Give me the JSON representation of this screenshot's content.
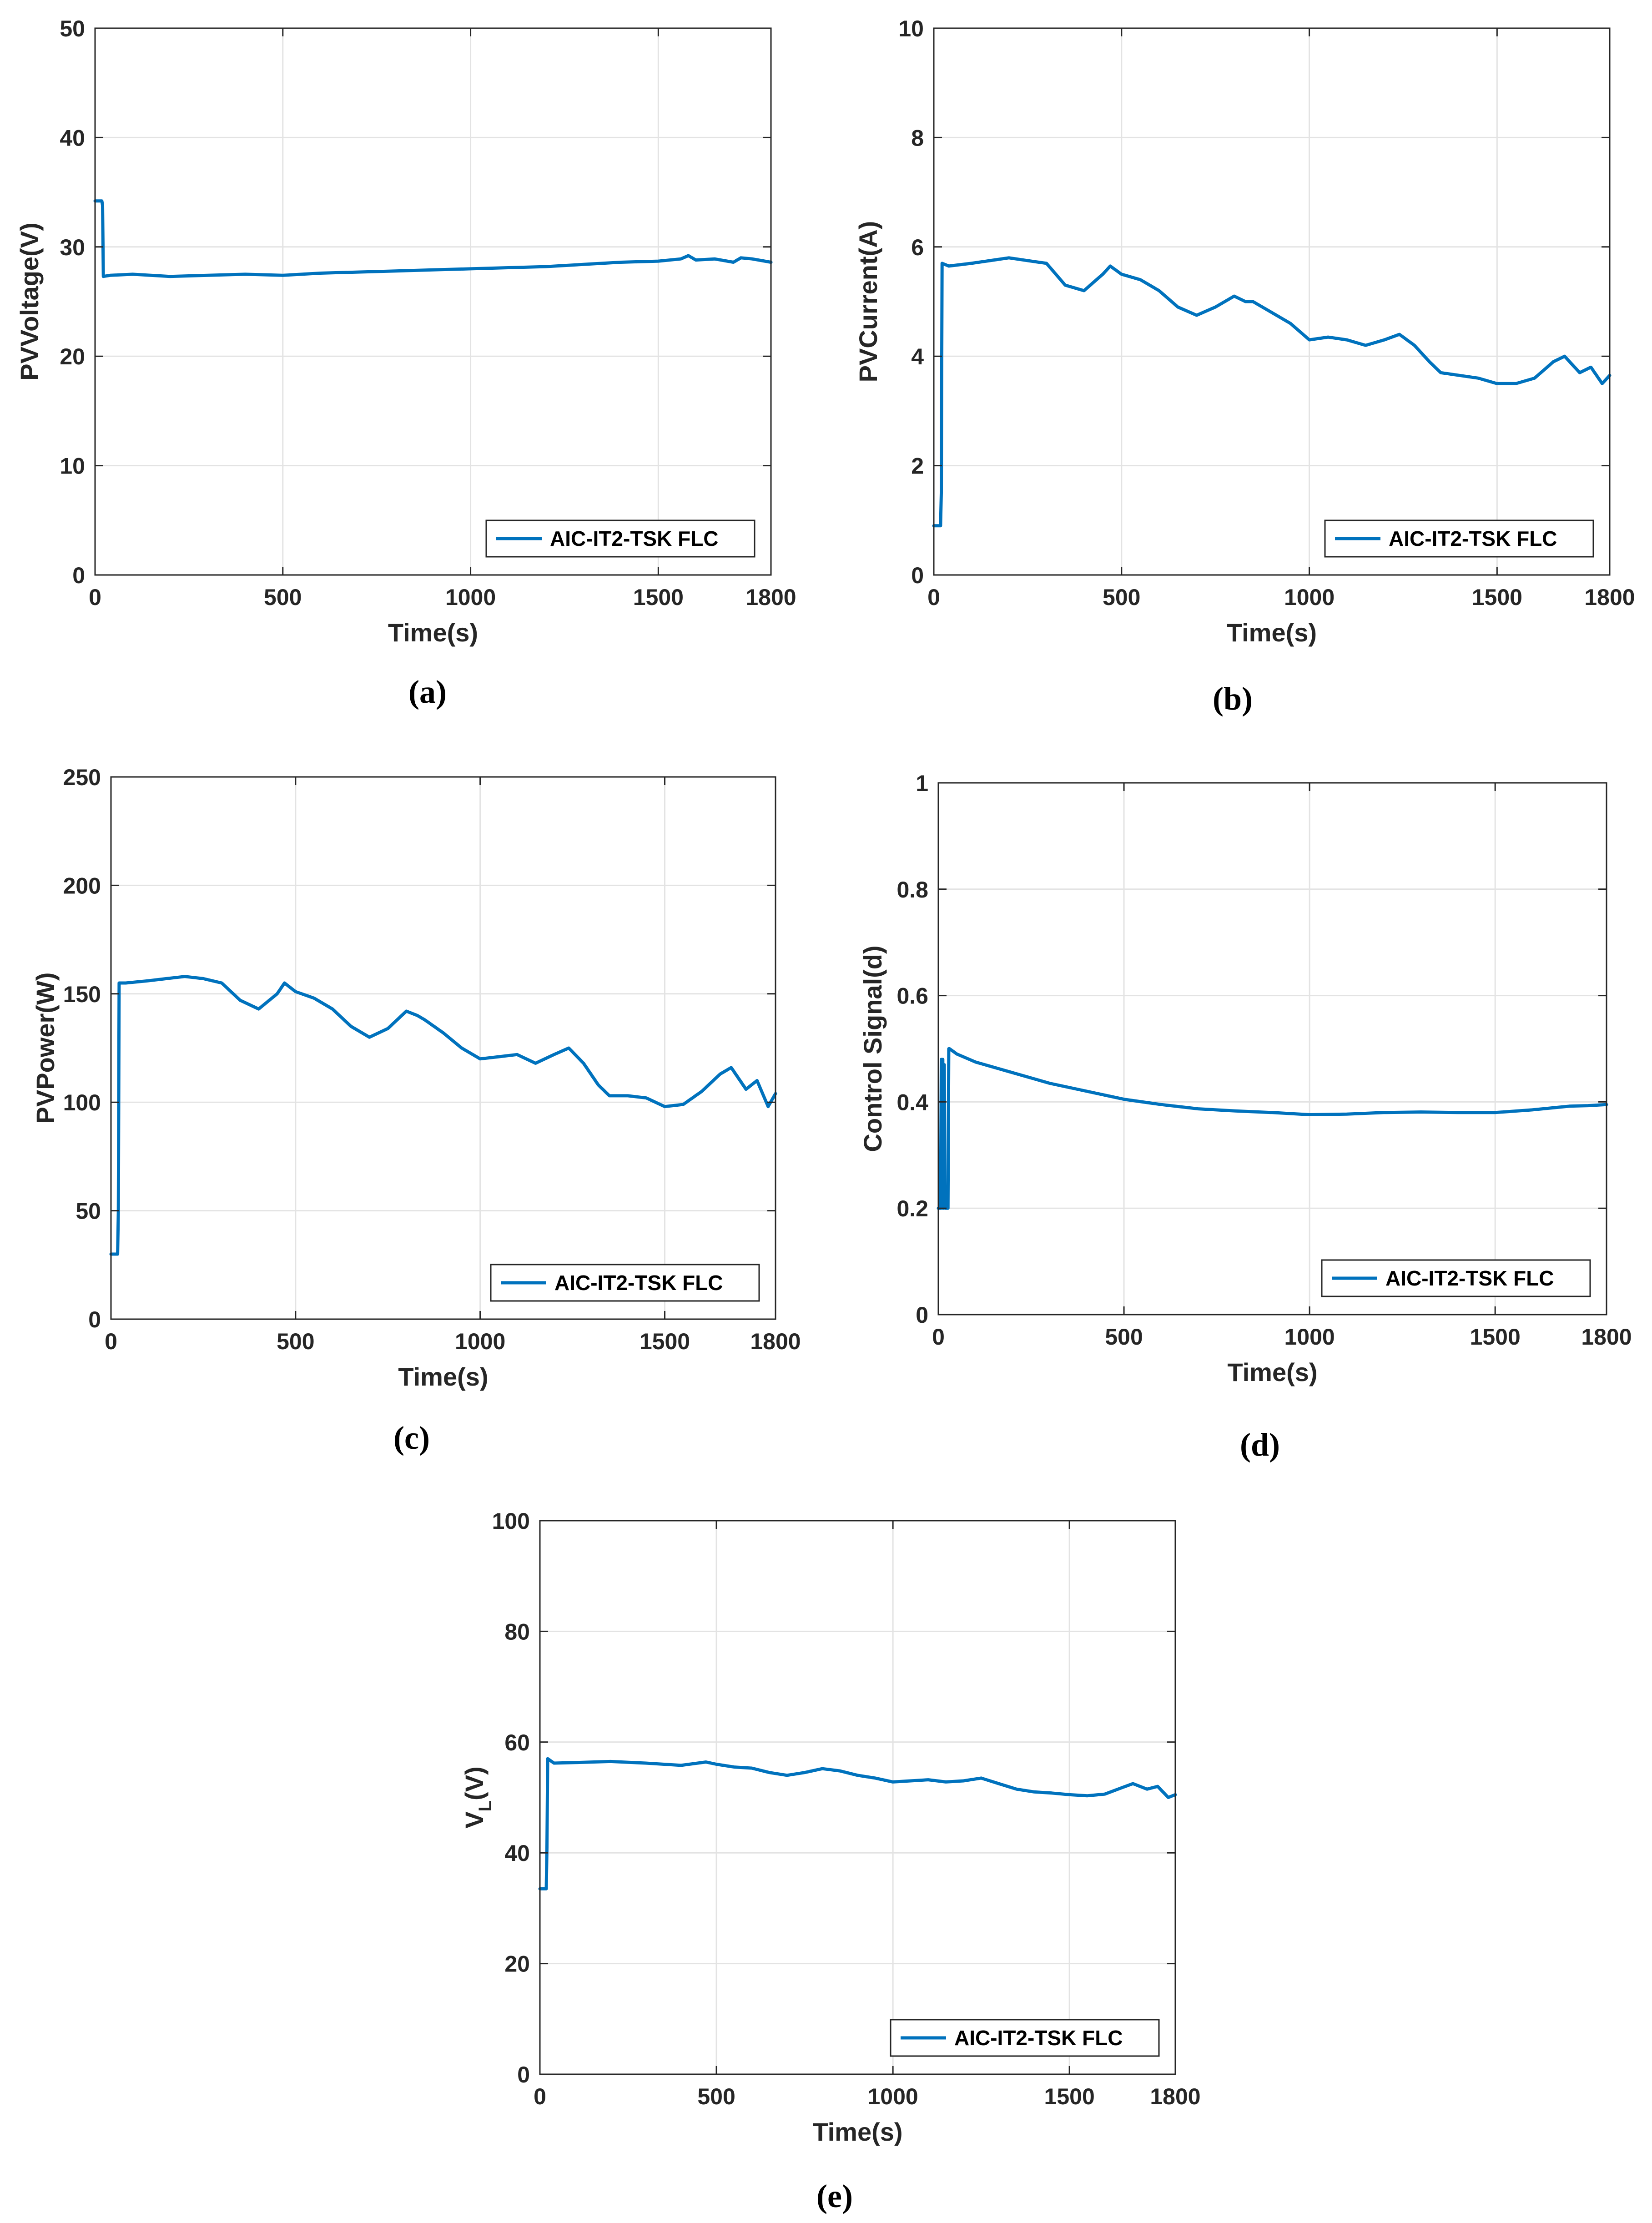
{
  "colors": {
    "series": "#0072BD",
    "axis": "#262626",
    "grid": "#e3e3e3"
  },
  "chart_data": [
    {
      "id": "a",
      "type": "line",
      "caption": "(a)",
      "xlabel": "Time(s)",
      "ylabel": "PVVoltage(V)",
      "xlim": [
        0,
        1800
      ],
      "ylim": [
        0,
        50
      ],
      "xticks": [
        0,
        500,
        1000,
        1500,
        1800
      ],
      "yticks": [
        0,
        10,
        20,
        30,
        40,
        50
      ],
      "grid": true,
      "legend": "AIC-IT2-TSK FLC",
      "legend_position": "bottom-right",
      "series": [
        {
          "name": "AIC-IT2-TSK FLC",
          "x": [
            0,
            18,
            20,
            22,
            40,
            100,
            200,
            300,
            400,
            500,
            600,
            700,
            800,
            900,
            1000,
            1100,
            1200,
            1300,
            1400,
            1500,
            1560,
            1580,
            1600,
            1650,
            1700,
            1720,
            1750,
            1800
          ],
          "y": [
            34.2,
            34.2,
            33.8,
            27.3,
            27.4,
            27.5,
            27.3,
            27.4,
            27.5,
            27.4,
            27.6,
            27.7,
            27.8,
            27.9,
            28.0,
            28.1,
            28.2,
            28.4,
            28.6,
            28.7,
            28.9,
            29.2,
            28.8,
            28.9,
            28.6,
            29.0,
            28.9,
            28.6
          ]
        }
      ]
    },
    {
      "id": "b",
      "type": "line",
      "caption": "(b)",
      "xlabel": "Time(s)",
      "ylabel": "PVCurrent(A)",
      "xlim": [
        0,
        1800
      ],
      "ylim": [
        0,
        10
      ],
      "xticks": [
        0,
        500,
        1000,
        1500,
        1800
      ],
      "yticks": [
        0,
        2,
        4,
        6,
        8,
        10
      ],
      "grid": true,
      "legend": "AIC-IT2-TSK FLC",
      "legend_position": "bottom-right",
      "series": [
        {
          "name": "AIC-IT2-TSK FLC",
          "x": [
            0,
            18,
            20,
            22,
            40,
            100,
            150,
            200,
            250,
            300,
            350,
            400,
            450,
            470,
            500,
            550,
            600,
            650,
            700,
            750,
            800,
            830,
            850,
            900,
            950,
            1000,
            1050,
            1100,
            1150,
            1200,
            1240,
            1280,
            1320,
            1350,
            1400,
            1450,
            1500,
            1550,
            1600,
            1650,
            1680,
            1720,
            1750,
            1780,
            1800
          ],
          "y": [
            0.9,
            0.9,
            1.5,
            5.7,
            5.65,
            5.7,
            5.75,
            5.8,
            5.75,
            5.7,
            5.3,
            5.2,
            5.5,
            5.65,
            5.5,
            5.4,
            5.2,
            4.9,
            4.75,
            4.9,
            5.1,
            5.0,
            5.0,
            4.8,
            4.6,
            4.3,
            4.35,
            4.3,
            4.2,
            4.3,
            4.4,
            4.2,
            3.9,
            3.7,
            3.65,
            3.6,
            3.5,
            3.5,
            3.6,
            3.9,
            4.0,
            3.7,
            3.8,
            3.5,
            3.65
          ]
        }
      ]
    },
    {
      "id": "c",
      "type": "line",
      "caption": "(c)",
      "xlabel": "Time(s)",
      "ylabel": "PVPower(W)",
      "xlim": [
        0,
        1800
      ],
      "ylim": [
        0,
        250
      ],
      "xticks": [
        0,
        500,
        1000,
        1500,
        1800
      ],
      "yticks": [
        0,
        50,
        100,
        150,
        200,
        250
      ],
      "grid": true,
      "legend": "AIC-IT2-TSK FLC",
      "legend_position": "bottom-right",
      "series": [
        {
          "name": "AIC-IT2-TSK FLC",
          "x": [
            0,
            18,
            20,
            22,
            40,
            100,
            150,
            200,
            250,
            300,
            350,
            400,
            450,
            470,
            500,
            550,
            600,
            650,
            700,
            750,
            800,
            830,
            850,
            900,
            950,
            1000,
            1050,
            1100,
            1150,
            1200,
            1240,
            1280,
            1320,
            1350,
            1400,
            1450,
            1500,
            1550,
            1600,
            1650,
            1680,
            1720,
            1750,
            1780,
            1800
          ],
          "y": [
            30,
            30,
            50,
            155,
            155,
            156,
            157,
            158,
            157,
            155,
            147,
            143,
            150,
            155,
            151,
            148,
            143,
            135,
            130,
            134,
            142,
            140,
            138,
            132,
            125,
            120,
            121,
            122,
            118,
            122,
            125,
            118,
            108,
            103,
            103,
            102,
            98,
            99,
            105,
            113,
            116,
            106,
            110,
            98,
            104
          ]
        }
      ]
    },
    {
      "id": "d",
      "type": "line",
      "caption": "(d)",
      "xlabel": "Time(s)",
      "ylabel": "Control Signal(d)",
      "xlim": [
        0,
        1800
      ],
      "ylim": [
        0,
        1
      ],
      "xticks": [
        0,
        500,
        1000,
        1500,
        1800
      ],
      "yticks": [
        0,
        0.2,
        0.4,
        0.6,
        0.8,
        1
      ],
      "grid": true,
      "legend": "AIC-IT2-TSK FLC",
      "legend_position": "bottom-right",
      "series": [
        {
          "name": "AIC-IT2-TSK FLC",
          "x": [
            0,
            6,
            8,
            10,
            12,
            14,
            16,
            18,
            20,
            22,
            24,
            26,
            28,
            30,
            50,
            100,
            200,
            300,
            400,
            500,
            600,
            700,
            800,
            900,
            1000,
            1100,
            1200,
            1300,
            1400,
            1500,
            1600,
            1700,
            1750,
            1800
          ],
          "y": [
            0.2,
            0.2,
            0.48,
            0.2,
            0.48,
            0.2,
            0.47,
            0.2,
            0.2,
            0.2,
            0.2,
            0.2,
            0.5,
            0.5,
            0.49,
            0.475,
            0.455,
            0.435,
            0.42,
            0.405,
            0.395,
            0.387,
            0.383,
            0.38,
            0.376,
            0.377,
            0.38,
            0.381,
            0.38,
            0.38,
            0.385,
            0.392,
            0.393,
            0.395
          ]
        }
      ]
    },
    {
      "id": "e",
      "type": "line",
      "caption": "(e)",
      "xlabel": "Time(s)",
      "ylabel": "V_L(V)",
      "ylabel_main": "V",
      "ylabel_sub": "L",
      "ylabel_tail": "(V)",
      "xlim": [
        0,
        1800
      ],
      "ylim": [
        0,
        100
      ],
      "xticks": [
        0,
        500,
        1000,
        1500,
        1800
      ],
      "yticks": [
        0,
        20,
        40,
        60,
        80,
        100
      ],
      "grid": true,
      "legend": "AIC-IT2-TSK FLC",
      "legend_position": "bottom-right",
      "series": [
        {
          "name": "AIC-IT2-TSK FLC",
          "x": [
            0,
            18,
            20,
            22,
            40,
            100,
            200,
            300,
            400,
            470,
            500,
            550,
            600,
            650,
            700,
            750,
            800,
            850,
            900,
            950,
            1000,
            1050,
            1100,
            1150,
            1200,
            1250,
            1300,
            1350,
            1400,
            1450,
            1500,
            1550,
            1600,
            1650,
            1680,
            1720,
            1750,
            1780,
            1800
          ],
          "y": [
            33.5,
            33.5,
            41,
            57,
            56.2,
            56.3,
            56.5,
            56.2,
            55.8,
            56.4,
            56.0,
            55.5,
            55.3,
            54.5,
            54.0,
            54.5,
            55.2,
            54.8,
            54.0,
            53.5,
            52.8,
            53.0,
            53.2,
            52.8,
            53.0,
            53.5,
            52.5,
            51.5,
            51.0,
            50.8,
            50.5,
            50.3,
            50.6,
            51.8,
            52.5,
            51.5,
            52.0,
            50.0,
            50.5
          ]
        }
      ]
    }
  ]
}
